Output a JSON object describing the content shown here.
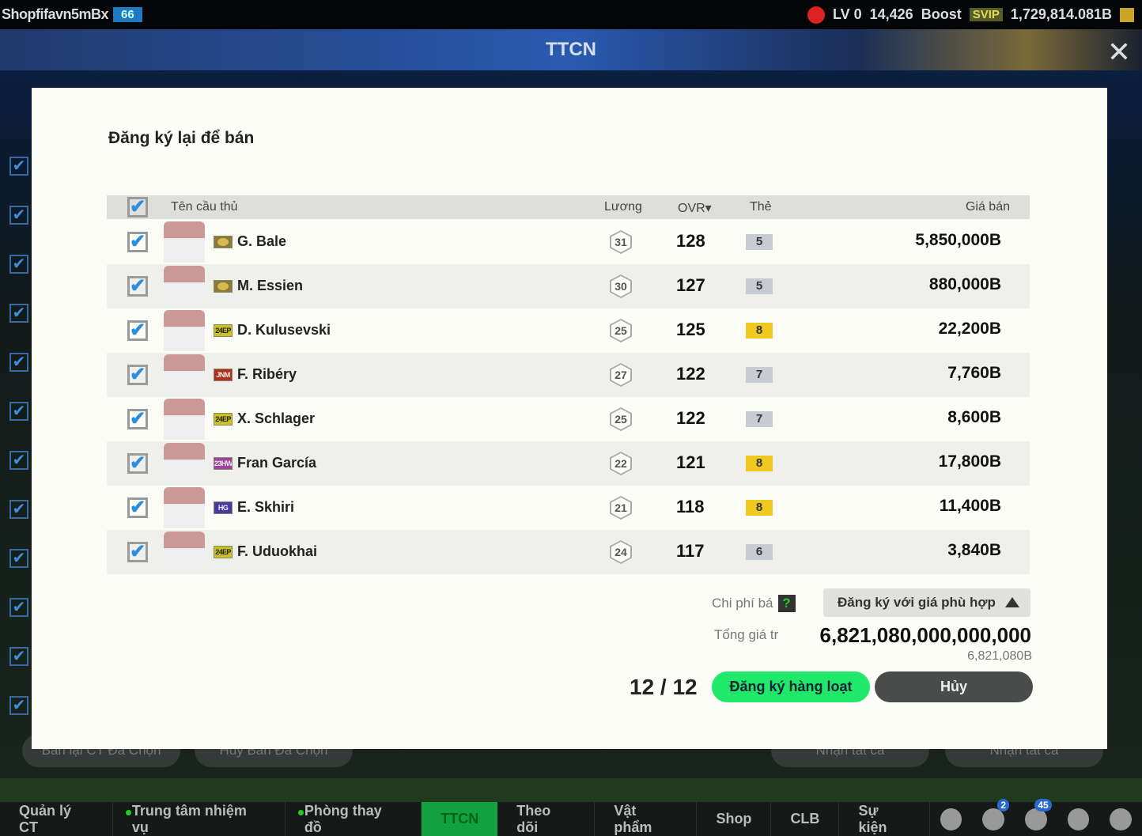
{
  "topbar": {
    "username": "Shopfifavn5mBx",
    "level": "66",
    "lv": "LV 0",
    "points": "14,426",
    "boost": "Boost",
    "svip": "SVIP",
    "balance": "1,729,814.081B"
  },
  "header": {
    "title": "TTCN",
    "close": "✕"
  },
  "background": {
    "buttons": [
      "Bán lại CT Đã Chọn",
      "Hủy Bán Đã Chọn",
      "Nhận tất cả",
      "Nhận tất cả"
    ]
  },
  "nav": {
    "items": [
      {
        "label": "Quản lý CT"
      },
      {
        "label": "Trung tâm nhiệm vụ",
        "dot": true
      },
      {
        "label": "Phòng thay đồ",
        "dot": true
      },
      {
        "label": "TTCN",
        "active": true
      },
      {
        "label": "Theo dõi"
      },
      {
        "label": "Vật phẩm"
      },
      {
        "label": "Shop"
      },
      {
        "label": "CLB"
      },
      {
        "label": "Sự kiện"
      }
    ],
    "icons": [
      {
        "name": "chat-icon"
      },
      {
        "name": "level-up-icon",
        "badge": "2"
      },
      {
        "name": "bell-icon",
        "badge": "45"
      },
      {
        "name": "profile-icon"
      },
      {
        "name": "settings-icon"
      }
    ]
  },
  "modal": {
    "title": "Đăng ký lại để bán",
    "columns": {
      "name": "Tên cầu thủ",
      "salary": "Lương",
      "ovr": "OVR▾",
      "grade": "Thẻ",
      "price": "Giá bán"
    },
    "players": [
      {
        "name": "G. Bale",
        "season": "ICON",
        "season_color": "#8a7a3a",
        "salary": "31",
        "ovr": "128",
        "grade": "5",
        "grade_color": "#c9cbd2",
        "price": "5,850,000B",
        "checked": true
      },
      {
        "name": "M. Essien",
        "season": "ICON",
        "season_color": "#8a7a3a",
        "salary": "30",
        "ovr": "127",
        "grade": "5",
        "grade_color": "#c9cbd2",
        "price": "880,000B",
        "checked": true
      },
      {
        "name": "D. Kulusevski",
        "season": "24EP",
        "season_color": "#c8c020",
        "salary": "25",
        "ovr": "125",
        "grade": "8",
        "grade_color": "#f0c820",
        "price": "22,200B",
        "checked": true
      },
      {
        "name": "F. Ribéry",
        "season": "JNM",
        "season_color": "#b03020",
        "salary": "27",
        "ovr": "122",
        "grade": "7",
        "grade_color": "#c9cbd2",
        "price": "7,760B",
        "checked": true
      },
      {
        "name": "X. Schlager",
        "season": "24EP",
        "season_color": "#c8c020",
        "salary": "25",
        "ovr": "122",
        "grade": "7",
        "grade_color": "#c9cbd2",
        "price": "8,600B",
        "checked": true
      },
      {
        "name": "Fran García",
        "season": "23HW",
        "season_color": "#a040a0",
        "salary": "22",
        "ovr": "121",
        "grade": "8",
        "grade_color": "#f0c820",
        "price": "17,800B",
        "checked": true
      },
      {
        "name": "E. Skhiri",
        "season": "HG",
        "season_color": "#4a3aa0",
        "salary": "21",
        "ovr": "118",
        "grade": "8",
        "grade_color": "#f0c820",
        "price": "11,400B",
        "checked": true
      },
      {
        "name": "F. Uduokhai",
        "season": "24EP",
        "season_color": "#c8c020",
        "salary": "24",
        "ovr": "117",
        "grade": "6",
        "grade_color": "#c9cbd2",
        "price": "3,840B",
        "checked": true
      }
    ],
    "fee_label": "Chi phí bá",
    "help": "?",
    "dropdown": "Đăng ký với giá phù hợp",
    "total_label": "Tổng giá tr",
    "total": "6,821,080,000,000,000",
    "total_short": "6,821,080B",
    "count": "12 / 12",
    "submit": "Đăng ký hàng loạt",
    "cancel": "Hủy"
  }
}
